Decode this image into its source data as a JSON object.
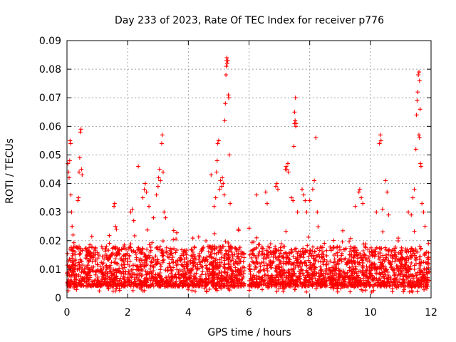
{
  "chart_data": {
    "type": "scatter",
    "title": "Day 233 of 2023, Rate Of TEC Index for receiver p776",
    "xlabel": "GPS time / hours",
    "ylabel": "ROTI / TECUs",
    "xlim": [
      0,
      12
    ],
    "ylim": [
      0,
      0.09
    ],
    "xticks": [
      0,
      2,
      4,
      6,
      8,
      10,
      12
    ],
    "xtick_labels": [
      "0",
      "2",
      "4",
      "6",
      "8",
      "10",
      "12"
    ],
    "yticks": [
      0,
      0.01,
      0.02,
      0.03,
      0.04,
      0.05,
      0.06,
      0.07,
      0.08,
      0.09
    ],
    "ytick_labels": [
      "0",
      "0.01",
      "0.02",
      "0.03",
      "0.04",
      "0.05",
      "0.06",
      "0.07",
      "0.08",
      "0.09"
    ],
    "grid": true,
    "marker": "+",
    "color": "#ff0000",
    "series": [
      {
        "name": "ROTI",
        "points": [
          [
            0.03,
            0.047
          ],
          [
            0.05,
            0.044
          ],
          [
            0.07,
            0.042
          ],
          [
            0.09,
            0.048
          ],
          [
            0.1,
            0.055
          ],
          [
            0.12,
            0.054
          ],
          [
            0.13,
            0.036
          ],
          [
            0.15,
            0.03
          ],
          [
            0.17,
            0.025
          ],
          [
            0.2,
            0.022
          ],
          [
            0.36,
            0.034
          ],
          [
            0.38,
            0.035
          ],
          [
            0.4,
            0.044
          ],
          [
            0.42,
            0.049
          ],
          [
            0.44,
            0.058
          ],
          [
            0.46,
            0.059
          ],
          [
            0.48,
            0.045
          ],
          [
            0.5,
            0.043
          ],
          [
            1.55,
            0.032
          ],
          [
            1.57,
            0.033
          ],
          [
            1.6,
            0.025
          ],
          [
            1.63,
            0.024
          ],
          [
            2.1,
            0.03
          ],
          [
            2.15,
            0.031
          ],
          [
            2.2,
            0.027
          ],
          [
            2.35,
            0.046
          ],
          [
            2.5,
            0.035
          ],
          [
            2.55,
            0.038
          ],
          [
            2.58,
            0.04
          ],
          [
            2.62,
            0.037
          ],
          [
            2.7,
            0.032
          ],
          [
            2.85,
            0.028
          ],
          [
            2.95,
            0.036
          ],
          [
            3.0,
            0.039
          ],
          [
            3.02,
            0.042
          ],
          [
            3.05,
            0.045
          ],
          [
            3.08,
            0.041
          ],
          [
            3.12,
            0.054
          ],
          [
            3.14,
            0.057
          ],
          [
            3.17,
            0.044
          ],
          [
            3.2,
            0.03
          ],
          [
            3.25,
            0.028
          ],
          [
            4.75,
            0.043
          ],
          [
            4.85,
            0.032
          ],
          [
            4.9,
            0.035
          ],
          [
            4.93,
            0.044
          ],
          [
            4.95,
            0.048
          ],
          [
            4.97,
            0.054
          ],
          [
            5.0,
            0.055
          ],
          [
            5.03,
            0.038
          ],
          [
            5.06,
            0.041
          ],
          [
            5.1,
            0.039
          ],
          [
            5.12,
            0.042
          ],
          [
            5.15,
            0.04
          ],
          [
            5.18,
            0.036
          ],
          [
            5.2,
            0.062
          ],
          [
            5.22,
            0.068
          ],
          [
            5.24,
            0.078
          ],
          [
            5.25,
            0.081
          ],
          [
            5.26,
            0.083
          ],
          [
            5.27,
            0.084
          ],
          [
            5.28,
            0.082
          ],
          [
            5.3,
            0.083
          ],
          [
            5.32,
            0.071
          ],
          [
            5.33,
            0.07
          ],
          [
            5.35,
            0.05
          ],
          [
            5.38,
            0.033
          ],
          [
            6.25,
            0.036
          ],
          [
            6.55,
            0.037
          ],
          [
            6.6,
            0.033
          ],
          [
            6.88,
            0.039
          ],
          [
            6.92,
            0.04
          ],
          [
            6.95,
            0.038
          ],
          [
            7.2,
            0.045
          ],
          [
            7.22,
            0.046
          ],
          [
            7.25,
            0.045
          ],
          [
            7.28,
            0.047
          ],
          [
            7.3,
            0.044
          ],
          [
            7.4,
            0.035
          ],
          [
            7.45,
            0.034
          ],
          [
            7.48,
            0.053
          ],
          [
            7.5,
            0.061
          ],
          [
            7.52,
            0.062
          ],
          [
            7.54,
            0.06
          ],
          [
            7.5,
            0.065
          ],
          [
            7.53,
            0.07
          ],
          [
            7.55,
            0.061
          ],
          [
            7.6,
            0.03
          ],
          [
            7.75,
            0.038
          ],
          [
            7.8,
            0.036
          ],
          [
            7.85,
            0.034
          ],
          [
            7.9,
            0.03
          ],
          [
            8.0,
            0.034
          ],
          [
            8.1,
            0.038
          ],
          [
            8.15,
            0.041
          ],
          [
            8.2,
            0.056
          ],
          [
            8.25,
            0.03
          ],
          [
            9.5,
            0.032
          ],
          [
            9.62,
            0.037
          ],
          [
            9.65,
            0.038
          ],
          [
            9.7,
            0.035
          ],
          [
            9.75,
            0.033
          ],
          [
            10.2,
            0.03
          ],
          [
            10.3,
            0.054
          ],
          [
            10.33,
            0.057
          ],
          [
            10.35,
            0.055
          ],
          [
            10.4,
            0.031
          ],
          [
            10.5,
            0.041
          ],
          [
            10.55,
            0.037
          ],
          [
            10.6,
            0.029
          ],
          [
            11.25,
            0.03
          ],
          [
            11.35,
            0.029
          ],
          [
            11.4,
            0.035
          ],
          [
            11.45,
            0.038
          ],
          [
            11.5,
            0.052
          ],
          [
            11.52,
            0.064
          ],
          [
            11.54,
            0.069
          ],
          [
            11.56,
            0.072
          ],
          [
            11.58,
            0.078
          ],
          [
            11.6,
            0.079
          ],
          [
            11.62,
            0.076
          ],
          [
            11.64,
            0.066
          ],
          [
            11.6,
            0.057
          ],
          [
            11.62,
            0.056
          ],
          [
            11.65,
            0.047
          ],
          [
            11.67,
            0.046
          ],
          [
            11.7,
            0.033
          ],
          [
            11.75,
            0.03
          ],
          [
            11.8,
            0.025
          ]
        ]
      }
    ],
    "dense_band": {
      "description": "bulk of samples between roughly 0.004 and 0.02 TECU/s across the day",
      "segments": [
        [
          0.0,
          5.85
        ],
        [
          6.0,
          11.95
        ]
      ],
      "typical_low": 0.004,
      "typical_high": 0.018
    }
  }
}
